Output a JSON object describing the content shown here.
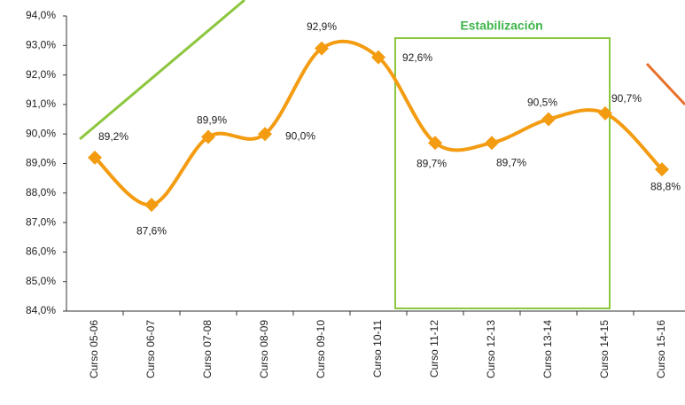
{
  "chart_data": {
    "type": "line",
    "categories": [
      "Curso 05-06",
      "Curso 06-07",
      "Curso 07-08",
      "Curso 08-09",
      "Curso 09-10",
      "Curso 10-11",
      "Curso 11-12",
      "Curso 12-13",
      "Curso 13-14",
      "Curso 14-15",
      "Curso 15-16"
    ],
    "series": [
      {
        "color": "#f39c12",
        "values": [
          89.2,
          87.6,
          89.9,
          90.0,
          92.9,
          92.6,
          89.7,
          89.7,
          90.5,
          90.7,
          88.8
        ],
        "value_labels": [
          "89,2%",
          "87,6%",
          "89,9%",
          "90,0%",
          "92,9%",
          "92,6%",
          "89,7%",
          "89,7%",
          "90,5%",
          "90,7%",
          "88,8%"
        ]
      }
    ],
    "ylim": [
      84,
      94
    ],
    "yticks": [
      {
        "value": 84,
        "label": "84,0%"
      },
      {
        "value": 85,
        "label": "85,0%"
      },
      {
        "value": 86,
        "label": "86,0%"
      },
      {
        "value": 87,
        "label": "87,0%"
      },
      {
        "value": 88,
        "label": "88,0%"
      },
      {
        "value": 89,
        "label": "89,0%"
      },
      {
        "value": 90,
        "label": "90,0%"
      },
      {
        "value": 91,
        "label": "91,0%"
      },
      {
        "value": 92,
        "label": "92,0%"
      },
      {
        "value": 93,
        "label": "93,0%"
      },
      {
        "value": 94,
        "label": "94,0%"
      }
    ],
    "annotation": "Estabilización"
  }
}
